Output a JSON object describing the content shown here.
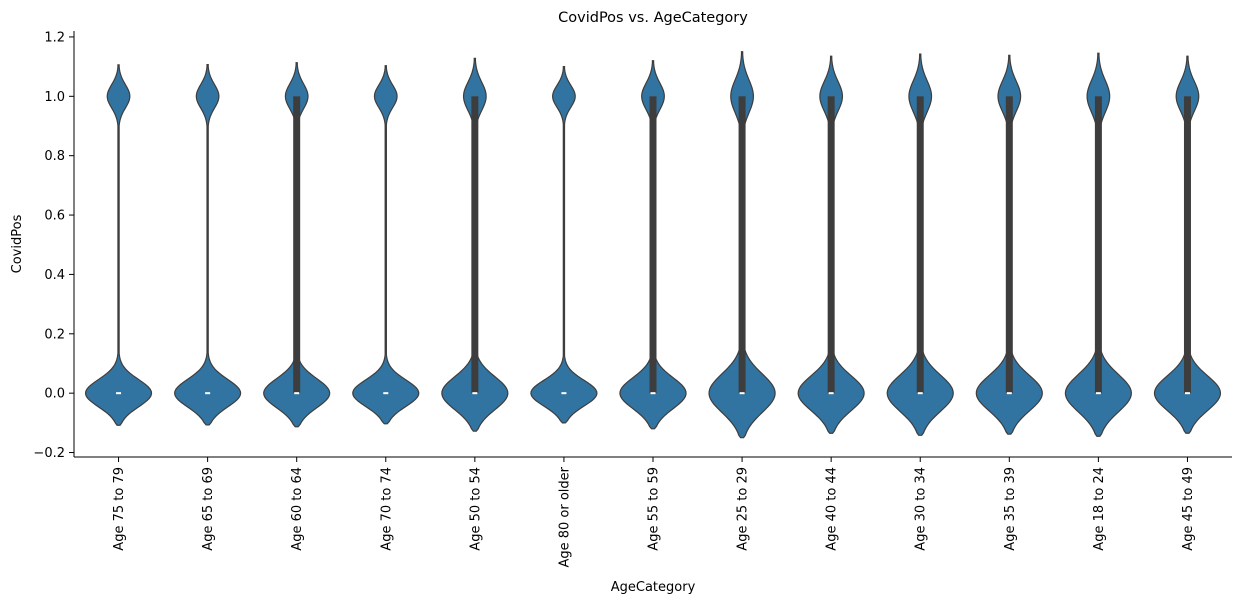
{
  "chart_data": {
    "type": "violin",
    "title": "CovidPos vs. AgeCategory",
    "xlabel": "AgeCategory",
    "ylabel": "CovidPos",
    "ylim": [
      -0.215,
      1.22
    ],
    "yticks": [
      -0.2,
      0.0,
      0.2,
      0.4,
      0.6,
      0.8,
      1.0,
      1.2
    ],
    "ytick_labels": [
      "−0.2",
      "0.0",
      "0.2",
      "0.4",
      "0.6",
      "0.8",
      "1.0",
      "1.2"
    ],
    "grid": false,
    "color": "#3274a1",
    "edge_color": "#3d3d3d",
    "categories": [
      "Age 75 to 79",
      "Age 65 to 69",
      "Age 60 to 64",
      "Age 70 to 74",
      "Age 50 to 54",
      "Age 80 or older",
      "Age 55 to 59",
      "Age 25 to 29",
      "Age 40 to 44",
      "Age 30 to 34",
      "Age 35 to 39",
      "Age 18 to 24",
      "Age 45 to 49"
    ],
    "violins": [
      {
        "category": "Age 75 to 79",
        "y_min": -0.108,
        "y_max": 1.106,
        "iqr": [
          0,
          0
        ],
        "median": 0
      },
      {
        "category": "Age 65 to 69",
        "y_min": -0.107,
        "y_max": 1.107,
        "iqr": [
          0,
          0
        ],
        "median": 0
      },
      {
        "category": "Age 60 to 64",
        "y_min": -0.113,
        "y_max": 1.113,
        "iqr": [
          0,
          1
        ],
        "median": 0
      },
      {
        "category": "Age 70 to 74",
        "y_min": -0.103,
        "y_max": 1.103,
        "iqr": [
          0,
          0
        ],
        "median": 0
      },
      {
        "category": "Age 50 to 54",
        "y_min": -0.128,
        "y_max": 1.128,
        "iqr": [
          0,
          1
        ],
        "median": 0
      },
      {
        "category": "Age 80 or older",
        "y_min": -0.1,
        "y_max": 1.1,
        "iqr": [
          0,
          0
        ],
        "median": 0
      },
      {
        "category": "Age 55 to 59",
        "y_min": -0.12,
        "y_max": 1.12,
        "iqr": [
          0,
          1
        ],
        "median": 0
      },
      {
        "category": "Age 25 to 29",
        "y_min": -0.15,
        "y_max": 1.15,
        "iqr": [
          0,
          1
        ],
        "median": 0
      },
      {
        "category": "Age 40 to 44",
        "y_min": -0.135,
        "y_max": 1.135,
        "iqr": [
          0,
          1
        ],
        "median": 0
      },
      {
        "category": "Age 30 to 34",
        "y_min": -0.142,
        "y_max": 1.142,
        "iqr": [
          0,
          1
        ],
        "median": 0
      },
      {
        "category": "Age 35 to 39",
        "y_min": -0.138,
        "y_max": 1.138,
        "iqr": [
          0,
          1
        ],
        "median": 0
      },
      {
        "category": "Age 18 to 24",
        "y_min": -0.145,
        "y_max": 1.145,
        "iqr": [
          0,
          1
        ],
        "median": 0
      },
      {
        "category": "Age 45 to 49",
        "y_min": -0.135,
        "y_max": 1.135,
        "iqr": [
          0,
          1
        ],
        "median": 0
      }
    ]
  }
}
